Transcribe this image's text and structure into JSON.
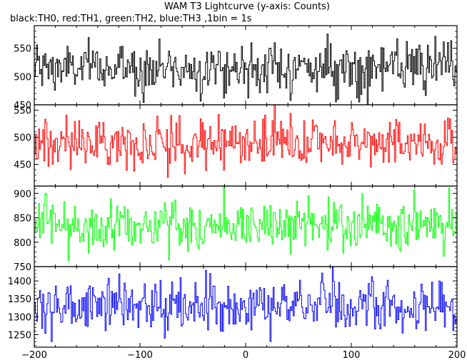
{
  "chart_data": {
    "type": "line",
    "title": "WAM T3 Lightcurve (y-axis: Counts)",
    "subtitle": "black:TH0, red:TH1, green:TH2, blue:TH3 ,1bin = 1s",
    "x_range": [
      -200,
      200
    ],
    "x_ticks": [
      -200,
      -100,
      0,
      100,
      200
    ],
    "x_tick_labels": [
      "−200",
      "−100",
      "0",
      "100",
      "200"
    ],
    "x_resolution_s": 1,
    "panels": [
      {
        "series": "TH0",
        "color": "#000000",
        "ylim": [
          450,
          590
        ],
        "y_ticks": [
          450,
          500,
          550
        ],
        "y_tick_labels": [
          "450",
          "500",
          "550"
        ],
        "approx_mean": 515,
        "approx_spread": 22,
        "y_min_visible": 450,
        "y_max_visible": 590
      },
      {
        "series": "TH1",
        "color": "#ff0000",
        "ylim": [
          410,
          560
        ],
        "y_ticks": [
          450,
          500,
          550
        ],
        "y_tick_labels": [
          "450",
          "500",
          "550"
        ],
        "approx_mean": 490,
        "approx_spread": 22,
        "y_min_visible": 410,
        "y_max_visible": 560
      },
      {
        "series": "TH2",
        "color": "#00ff00",
        "ylim": [
          750,
          915
        ],
        "y_ticks": [
          750,
          800,
          850,
          900
        ],
        "y_tick_labels": [
          "750",
          "800",
          "850",
          "900"
        ],
        "approx_mean": 835,
        "approx_spread": 27,
        "y_min_visible": 750,
        "y_max_visible": 915
      },
      {
        "series": "TH3",
        "color": "#0000ff",
        "ylim": [
          1215,
          1440
        ],
        "y_ticks": [
          1250,
          1300,
          1350,
          1400
        ],
        "y_tick_labels": [
          "1250",
          "1300",
          "1350",
          "1400"
        ],
        "approx_mean": 1330,
        "approx_spread": 37,
        "y_min_visible": 1215,
        "y_max_visible": 1440
      }
    ],
    "grid": false,
    "legend": "none"
  }
}
